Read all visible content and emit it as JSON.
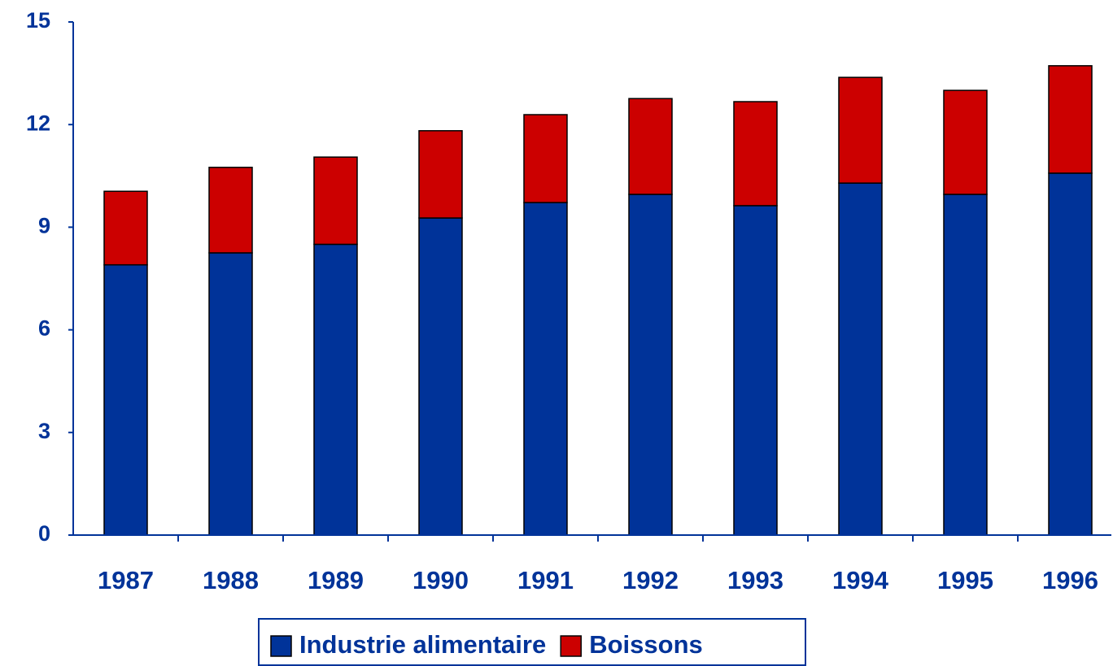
{
  "chart_data": {
    "type": "stacked_bar",
    "categories": [
      "1987",
      "1988",
      "1989",
      "1990",
      "1991",
      "1992",
      "1993",
      "1994",
      "1995",
      "1996"
    ],
    "series": [
      {
        "name": "Industrie alimentaire",
        "color": "#003399",
        "values": [
          7.9,
          8.25,
          8.5,
          9.27,
          9.72,
          9.96,
          9.63,
          10.29,
          9.96,
          10.58
        ]
      },
      {
        "name": "Boissons",
        "color": "#cc0000",
        "values": [
          2.15,
          2.5,
          2.55,
          2.55,
          2.57,
          2.8,
          3.04,
          3.09,
          3.04,
          3.14
        ]
      }
    ],
    "ylim": [
      0,
      15
    ],
    "yticks": [
      0,
      3,
      6,
      9,
      12,
      15
    ],
    "legend": "bottom"
  }
}
